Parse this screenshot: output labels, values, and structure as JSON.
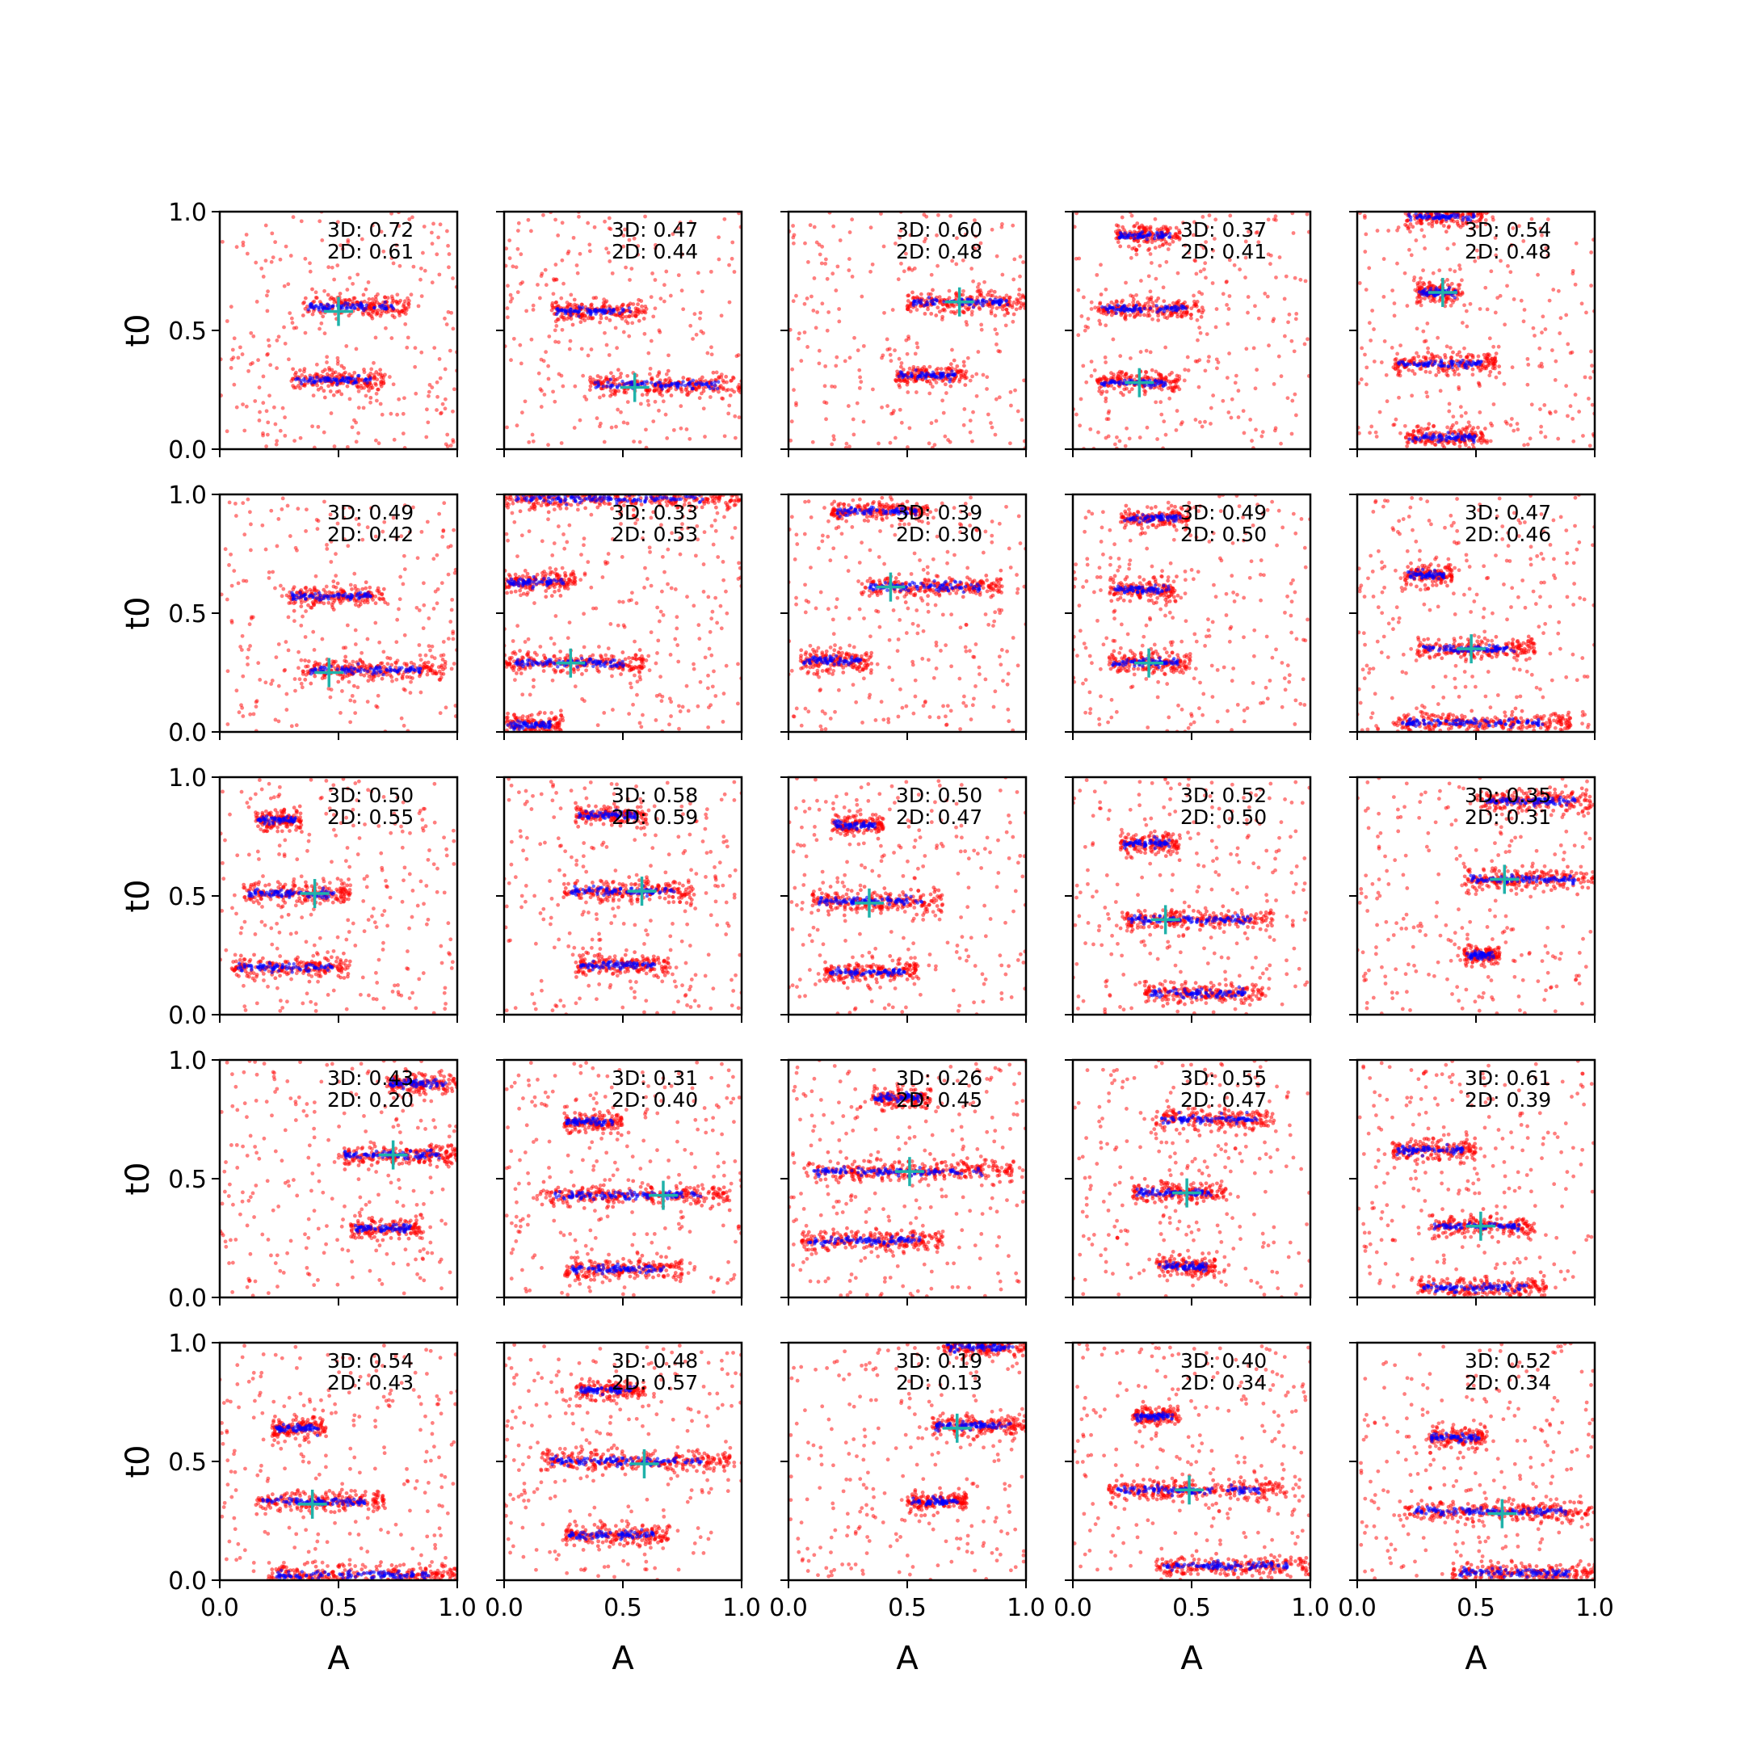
{
  "figure": {
    "xlabel": "A",
    "ylabel": "t0",
    "xticks": [
      "0.0",
      "0.5",
      "1.0"
    ],
    "yticks": [
      "0.0",
      "0.5",
      "1.0"
    ],
    "grid_rows": 5,
    "grid_cols": 5,
    "colors": {
      "sample_points": "#ff0000",
      "mode_points": "#0000ff",
      "true_marker": "#20b2aa"
    }
  },
  "chart_data": [
    {
      "type": "scatter",
      "row": 0,
      "col": 0,
      "annotation_3d": "3D: 0.72",
      "annotation_2d": "2D: 0.61",
      "xlim": [
        0,
        1
      ],
      "ylim": [
        0,
        1
      ],
      "true_point": [
        0.5,
        0.58
      ],
      "clusters": [
        {
          "t0": 0.6,
          "a_min": 0.35,
          "a_max": 0.8
        },
        {
          "t0": 0.29,
          "a_min": 0.3,
          "a_max": 0.7
        }
      ]
    },
    {
      "type": "scatter",
      "row": 0,
      "col": 1,
      "annotation_3d": "3D: 0.47",
      "annotation_2d": "2D: 0.44",
      "xlim": [
        0,
        1
      ],
      "ylim": [
        0,
        1
      ],
      "true_point": [
        0.55,
        0.26
      ],
      "clusters": [
        {
          "t0": 0.58,
          "a_min": 0.2,
          "a_max": 0.6
        },
        {
          "t0": 0.27,
          "a_min": 0.35,
          "a_max": 1.0
        }
      ]
    },
    {
      "type": "scatter",
      "row": 0,
      "col": 2,
      "annotation_3d": "3D: 0.60",
      "annotation_2d": "2D: 0.48",
      "xlim": [
        0,
        1
      ],
      "ylim": [
        0,
        1
      ],
      "true_point": [
        0.72,
        0.62
      ],
      "clusters": [
        {
          "t0": 0.62,
          "a_min": 0.5,
          "a_max": 1.0
        },
        {
          "t0": 0.31,
          "a_min": 0.45,
          "a_max": 0.75
        }
      ]
    },
    {
      "type": "scatter",
      "row": 0,
      "col": 3,
      "annotation_3d": "3D: 0.37",
      "annotation_2d": "2D: 0.41",
      "xlim": [
        0,
        1
      ],
      "ylim": [
        0,
        1
      ],
      "true_point": [
        0.28,
        0.28
      ],
      "clusters": [
        {
          "t0": 0.9,
          "a_min": 0.18,
          "a_max": 0.45
        },
        {
          "t0": 0.59,
          "a_min": 0.1,
          "a_max": 0.55
        },
        {
          "t0": 0.28,
          "a_min": 0.1,
          "a_max": 0.45
        }
      ]
    },
    {
      "type": "scatter",
      "row": 0,
      "col": 4,
      "annotation_3d": "3D: 0.54",
      "annotation_2d": "2D: 0.48",
      "xlim": [
        0,
        1
      ],
      "ylim": [
        0,
        1
      ],
      "true_point": [
        0.36,
        0.66
      ],
      "clusters": [
        {
          "t0": 0.98,
          "a_min": 0.2,
          "a_max": 0.55
        },
        {
          "t0": 0.66,
          "a_min": 0.25,
          "a_max": 0.45
        },
        {
          "t0": 0.36,
          "a_min": 0.15,
          "a_max": 0.6
        },
        {
          "t0": 0.05,
          "a_min": 0.2,
          "a_max": 0.55
        }
      ]
    },
    {
      "type": "scatter",
      "row": 1,
      "col": 0,
      "annotation_3d": "3D: 0.49",
      "annotation_2d": "2D: 0.42",
      "xlim": [
        0,
        1
      ],
      "ylim": [
        0,
        1
      ],
      "true_point": [
        0.46,
        0.25
      ],
      "clusters": [
        {
          "t0": 0.57,
          "a_min": 0.28,
          "a_max": 0.7
        },
        {
          "t0": 0.26,
          "a_min": 0.35,
          "a_max": 0.95
        }
      ]
    },
    {
      "type": "scatter",
      "row": 1,
      "col": 1,
      "annotation_3d": "3D: 0.33",
      "annotation_2d": "2D: 0.53",
      "xlim": [
        0,
        1
      ],
      "ylim": [
        0,
        1
      ],
      "true_point": [
        0.28,
        0.29
      ],
      "clusters": [
        {
          "t0": 0.98,
          "a_min": 0.0,
          "a_max": 1.0
        },
        {
          "t0": 0.63,
          "a_min": 0.0,
          "a_max": 0.3
        },
        {
          "t0": 0.29,
          "a_min": 0.0,
          "a_max": 0.6
        },
        {
          "t0": 0.03,
          "a_min": 0.0,
          "a_max": 0.25
        }
      ]
    },
    {
      "type": "scatter",
      "row": 1,
      "col": 2,
      "annotation_3d": "3D: 0.39",
      "annotation_2d": "2D: 0.30",
      "xlim": [
        0,
        1
      ],
      "ylim": [
        0,
        1
      ],
      "true_point": [
        0.43,
        0.61
      ],
      "clusters": [
        {
          "t0": 0.93,
          "a_min": 0.18,
          "a_max": 0.6
        },
        {
          "t0": 0.61,
          "a_min": 0.3,
          "a_max": 0.9
        },
        {
          "t0": 0.3,
          "a_min": 0.05,
          "a_max": 0.35
        }
      ]
    },
    {
      "type": "scatter",
      "row": 1,
      "col": 3,
      "annotation_3d": "3D: 0.49",
      "annotation_2d": "2D: 0.50",
      "xlim": [
        0,
        1
      ],
      "ylim": [
        0,
        1
      ],
      "true_point": [
        0.32,
        0.29
      ],
      "clusters": [
        {
          "t0": 0.9,
          "a_min": 0.2,
          "a_max": 0.5
        },
        {
          "t0": 0.6,
          "a_min": 0.15,
          "a_max": 0.45
        },
        {
          "t0": 0.29,
          "a_min": 0.15,
          "a_max": 0.5
        }
      ]
    },
    {
      "type": "scatter",
      "row": 1,
      "col": 4,
      "annotation_3d": "3D: 0.47",
      "annotation_2d": "2D: 0.46",
      "xlim": [
        0,
        1
      ],
      "ylim": [
        0,
        1
      ],
      "true_point": [
        0.48,
        0.35
      ],
      "clusters": [
        {
          "t0": 0.66,
          "a_min": 0.2,
          "a_max": 0.4
        },
        {
          "t0": 0.35,
          "a_min": 0.25,
          "a_max": 0.75
        },
        {
          "t0": 0.04,
          "a_min": 0.15,
          "a_max": 0.9
        }
      ]
    },
    {
      "type": "scatter",
      "row": 2,
      "col": 0,
      "annotation_3d": "3D: 0.50",
      "annotation_2d": "2D: 0.55",
      "xlim": [
        0,
        1
      ],
      "ylim": [
        0,
        1
      ],
      "true_point": [
        0.4,
        0.51
      ],
      "clusters": [
        {
          "t0": 0.82,
          "a_min": 0.15,
          "a_max": 0.35
        },
        {
          "t0": 0.51,
          "a_min": 0.1,
          "a_max": 0.55
        },
        {
          "t0": 0.2,
          "a_min": 0.05,
          "a_max": 0.55
        }
      ]
    },
    {
      "type": "scatter",
      "row": 2,
      "col": 1,
      "annotation_3d": "3D: 0.58",
      "annotation_2d": "2D: 0.59",
      "xlim": [
        0,
        1
      ],
      "ylim": [
        0,
        1
      ],
      "true_point": [
        0.58,
        0.52
      ],
      "clusters": [
        {
          "t0": 0.84,
          "a_min": 0.3,
          "a_max": 0.6
        },
        {
          "t0": 0.52,
          "a_min": 0.25,
          "a_max": 0.8
        },
        {
          "t0": 0.21,
          "a_min": 0.3,
          "a_max": 0.7
        }
      ]
    },
    {
      "type": "scatter",
      "row": 2,
      "col": 2,
      "annotation_3d": "3D: 0.50",
      "annotation_2d": "2D: 0.47",
      "xlim": [
        0,
        1
      ],
      "ylim": [
        0,
        1
      ],
      "true_point": [
        0.34,
        0.47
      ],
      "clusters": [
        {
          "t0": 0.8,
          "a_min": 0.18,
          "a_max": 0.4
        },
        {
          "t0": 0.48,
          "a_min": 0.1,
          "a_max": 0.65
        },
        {
          "t0": 0.18,
          "a_min": 0.15,
          "a_max": 0.55
        }
      ]
    },
    {
      "type": "scatter",
      "row": 2,
      "col": 3,
      "annotation_3d": "3D: 0.52",
      "annotation_2d": "2D: 0.50",
      "xlim": [
        0,
        1
      ],
      "ylim": [
        0,
        1
      ],
      "true_point": [
        0.39,
        0.4
      ],
      "clusters": [
        {
          "t0": 0.72,
          "a_min": 0.2,
          "a_max": 0.45
        },
        {
          "t0": 0.4,
          "a_min": 0.2,
          "a_max": 0.85
        },
        {
          "t0": 0.09,
          "a_min": 0.3,
          "a_max": 0.8
        }
      ]
    },
    {
      "type": "scatter",
      "row": 2,
      "col": 4,
      "annotation_3d": "3D: 0.35",
      "annotation_2d": "2D: 0.31",
      "xlim": [
        0,
        1
      ],
      "ylim": [
        0,
        1
      ],
      "true_point": [
        0.62,
        0.57
      ],
      "clusters": [
        {
          "t0": 0.9,
          "a_min": 0.5,
          "a_max": 1.0
        },
        {
          "t0": 0.57,
          "a_min": 0.45,
          "a_max": 1.0
        },
        {
          "t0": 0.25,
          "a_min": 0.45,
          "a_max": 0.6
        }
      ]
    },
    {
      "type": "scatter",
      "row": 3,
      "col": 0,
      "annotation_3d": "3D: 0.43",
      "annotation_2d": "2D: 0.20",
      "xlim": [
        0,
        1
      ],
      "ylim": [
        0,
        1
      ],
      "true_point": [
        0.73,
        0.6
      ],
      "clusters": [
        {
          "t0": 0.9,
          "a_min": 0.7,
          "a_max": 1.0
        },
        {
          "t0": 0.6,
          "a_min": 0.5,
          "a_max": 1.0
        },
        {
          "t0": 0.29,
          "a_min": 0.55,
          "a_max": 0.85
        }
      ]
    },
    {
      "type": "scatter",
      "row": 3,
      "col": 1,
      "annotation_3d": "3D: 0.31",
      "annotation_2d": "2D: 0.40",
      "xlim": [
        0,
        1
      ],
      "ylim": [
        0,
        1
      ],
      "true_point": [
        0.67,
        0.43
      ],
      "clusters": [
        {
          "t0": 0.74,
          "a_min": 0.25,
          "a_max": 0.5
        },
        {
          "t0": 0.43,
          "a_min": 0.15,
          "a_max": 0.95
        },
        {
          "t0": 0.12,
          "a_min": 0.25,
          "a_max": 0.75
        }
      ]
    },
    {
      "type": "scatter",
      "row": 3,
      "col": 2,
      "annotation_3d": "3D: 0.26",
      "annotation_2d": "2D: 0.45",
      "xlim": [
        0,
        1
      ],
      "ylim": [
        0,
        1
      ],
      "true_point": [
        0.51,
        0.53
      ],
      "clusters": [
        {
          "t0": 0.84,
          "a_min": 0.35,
          "a_max": 0.6
        },
        {
          "t0": 0.53,
          "a_min": 0.05,
          "a_max": 0.95
        },
        {
          "t0": 0.24,
          "a_min": 0.05,
          "a_max": 0.65
        }
      ]
    },
    {
      "type": "scatter",
      "row": 3,
      "col": 3,
      "annotation_3d": "3D: 0.55",
      "annotation_2d": "2D: 0.47",
      "xlim": [
        0,
        1
      ],
      "ylim": [
        0,
        1
      ],
      "true_point": [
        0.48,
        0.44
      ],
      "clusters": [
        {
          "t0": 0.75,
          "a_min": 0.35,
          "a_max": 0.85
        },
        {
          "t0": 0.44,
          "a_min": 0.25,
          "a_max": 0.65
        },
        {
          "t0": 0.13,
          "a_min": 0.35,
          "a_max": 0.6
        }
      ]
    },
    {
      "type": "scatter",
      "row": 3,
      "col": 4,
      "annotation_3d": "3D: 0.61",
      "annotation_2d": "2D: 0.39",
      "xlim": [
        0,
        1
      ],
      "ylim": [
        0,
        1
      ],
      "true_point": [
        0.52,
        0.3
      ],
      "clusters": [
        {
          "t0": 0.62,
          "a_min": 0.15,
          "a_max": 0.5
        },
        {
          "t0": 0.3,
          "a_min": 0.3,
          "a_max": 0.75
        },
        {
          "t0": 0.04,
          "a_min": 0.25,
          "a_max": 0.8
        }
      ]
    },
    {
      "type": "scatter",
      "row": 4,
      "col": 0,
      "annotation_3d": "3D: 0.54",
      "annotation_2d": "2D: 0.43",
      "xlim": [
        0,
        1
      ],
      "ylim": [
        0,
        1
      ],
      "true_point": [
        0.39,
        0.32
      ],
      "clusters": [
        {
          "t0": 0.64,
          "a_min": 0.22,
          "a_max": 0.45
        },
        {
          "t0": 0.33,
          "a_min": 0.15,
          "a_max": 0.7
        },
        {
          "t0": 0.02,
          "a_min": 0.2,
          "a_max": 1.0
        }
      ]
    },
    {
      "type": "scatter",
      "row": 4,
      "col": 1,
      "annotation_3d": "3D: 0.48",
      "annotation_2d": "2D: 0.57",
      "xlim": [
        0,
        1
      ],
      "ylim": [
        0,
        1
      ],
      "true_point": [
        0.59,
        0.49
      ],
      "clusters": [
        {
          "t0": 0.8,
          "a_min": 0.3,
          "a_max": 0.6
        },
        {
          "t0": 0.5,
          "a_min": 0.15,
          "a_max": 0.95
        },
        {
          "t0": 0.19,
          "a_min": 0.25,
          "a_max": 0.7
        }
      ]
    },
    {
      "type": "scatter",
      "row": 4,
      "col": 2,
      "annotation_3d": "3D: 0.19",
      "annotation_2d": "2D: 0.13",
      "xlim": [
        0,
        1
      ],
      "ylim": [
        0,
        1
      ],
      "true_point": [
        0.71,
        0.64
      ],
      "clusters": [
        {
          "t0": 0.98,
          "a_min": 0.65,
          "a_max": 1.0
        },
        {
          "t0": 0.65,
          "a_min": 0.6,
          "a_max": 1.0
        },
        {
          "t0": 0.33,
          "a_min": 0.5,
          "a_max": 0.75
        }
      ]
    },
    {
      "type": "scatter",
      "row": 4,
      "col": 3,
      "annotation_3d": "3D: 0.40",
      "annotation_2d": "2D: 0.34",
      "xlim": [
        0,
        1
      ],
      "ylim": [
        0,
        1
      ],
      "true_point": [
        0.49,
        0.38
      ],
      "clusters": [
        {
          "t0": 0.69,
          "a_min": 0.25,
          "a_max": 0.45
        },
        {
          "t0": 0.38,
          "a_min": 0.15,
          "a_max": 0.9
        },
        {
          "t0": 0.06,
          "a_min": 0.35,
          "a_max": 1.0
        }
      ]
    },
    {
      "type": "scatter",
      "row": 4,
      "col": 4,
      "annotation_3d": "3D: 0.52",
      "annotation_2d": "2D: 0.34",
      "xlim": [
        0,
        1
      ],
      "ylim": [
        0,
        1
      ],
      "true_point": [
        0.61,
        0.28
      ],
      "clusters": [
        {
          "t0": 0.6,
          "a_min": 0.3,
          "a_max": 0.55
        },
        {
          "t0": 0.29,
          "a_min": 0.2,
          "a_max": 1.0
        },
        {
          "t0": 0.03,
          "a_min": 0.4,
          "a_max": 1.0
        }
      ]
    }
  ]
}
